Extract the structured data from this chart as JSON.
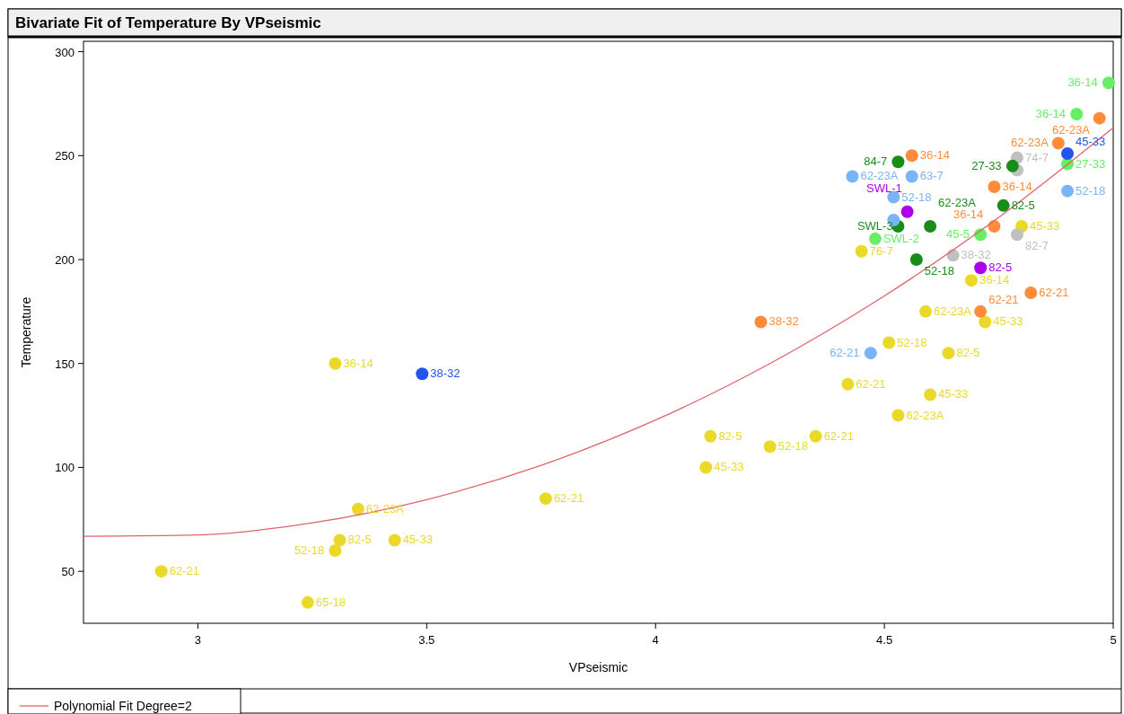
{
  "chart_data": {
    "type": "scatter",
    "title": "Bivariate Fit of Temperature By VPseismic",
    "xlabel": "VPseismic",
    "ylabel": "Temperature",
    "xlim": [
      2.75,
      5
    ],
    "ylim": [
      25,
      305
    ],
    "xticks": [
      3,
      3.5,
      4,
      4.5,
      5
    ],
    "yticks": [
      50,
      100,
      150,
      200,
      250,
      300
    ],
    "grid": false,
    "legend": "bottom left",
    "marker": "circle",
    "series": [
      {
        "color": "#ebd92a",
        "x": [
          2.92,
          3.24,
          3.3,
          3.31,
          3.35,
          3.43,
          3.3,
          3.76,
          4.11,
          4.12,
          4.25,
          4.35,
          4.42,
          4.53,
          4.6,
          4.64,
          4.51,
          4.59,
          4.72,
          4.69,
          4.45,
          4.8
        ],
        "values": [
          50,
          35,
          60,
          65,
          80,
          65,
          150,
          85,
          100,
          115,
          110,
          115,
          140,
          125,
          135,
          155,
          160,
          175,
          170,
          190,
          204,
          216
        ]
      },
      {
        "color": "#ff8c3a",
        "x": [
          4.23,
          4.71,
          4.82,
          4.74,
          4.74,
          4.56,
          4.88,
          4.97
        ],
        "values": [
          170,
          175,
          184,
          216,
          235,
          250,
          256,
          268
        ]
      },
      {
        "color": "#66ee66",
        "x": [
          4.48,
          4.71,
          4.99,
          4.92,
          4.9
        ],
        "values": [
          210,
          212,
          285,
          270,
          246
        ]
      },
      {
        "color": "#c0c0c0",
        "x": [
          4.79,
          4.79,
          4.79,
          4.65
        ],
        "values": [
          249,
          243,
          212,
          202
        ]
      },
      {
        "color": "#1a8c1a",
        "x": [
          4.53,
          4.78,
          4.76,
          4.57,
          4.53,
          4.6
        ],
        "values": [
          247,
          245,
          226,
          200,
          216,
          216
        ]
      },
      {
        "color": "#7ab4f8",
        "x": [
          4.43,
          4.56,
          4.52,
          4.52,
          4.9,
          4.47
        ],
        "values": [
          240,
          240,
          230,
          219,
          233,
          155
        ]
      },
      {
        "color": "#2255ee",
        "x": [
          3.49,
          4.9
        ],
        "values": [
          145,
          251
        ]
      },
      {
        "color": "#aa00ee",
        "x": [
          4.55,
          4.71
        ],
        "values": [
          223,
          196
        ]
      },
      {
        "type": "line",
        "name": "Polynomial Fit Degree=2",
        "color": "#e0636b",
        "marker": "none",
        "x": [
          2.75,
          3,
          3.25,
          3.5,
          3.75,
          4,
          4.25,
          4.5,
          4.75,
          5
        ],
        "values": [
          66.9,
          67.5,
          73.3,
          84.5,
          101,
          122.8,
          150,
          182.5,
          220.3,
          263.4
        ]
      }
    ],
    "annotations": [
      {
        "text": "62-21",
        "x": 2.92,
        "y": 50
      },
      {
        "text": "65-18",
        "x": 3.24,
        "y": 35
      },
      {
        "text": "52-18",
        "x": 3.3,
        "y": 60
      },
      {
        "text": "82-5",
        "x": 3.31,
        "y": 65
      },
      {
        "text": "62-23A",
        "x": 3.35,
        "y": 80
      },
      {
        "text": "45-33",
        "x": 3.43,
        "y": 65
      },
      {
        "text": "36-14",
        "x": 3.3,
        "y": 150
      },
      {
        "text": "62-21",
        "x": 3.76,
        "y": 85
      },
      {
        "text": "45-33",
        "x": 4.11,
        "y": 100
      },
      {
        "text": "82-5",
        "x": 4.12,
        "y": 115
      },
      {
        "text": "52-18",
        "x": 4.25,
        "y": 110
      },
      {
        "text": "62-21",
        "x": 4.35,
        "y": 115
      },
      {
        "text": "62-21",
        "x": 4.42,
        "y": 140
      },
      {
        "text": "62-23A",
        "x": 4.53,
        "y": 125
      },
      {
        "text": "45-33",
        "x": 4.6,
        "y": 135
      },
      {
        "text": "82-5",
        "x": 4.64,
        "y": 155
      },
      {
        "text": "52-18",
        "x": 4.51,
        "y": 160
      },
      {
        "text": "62-23A",
        "x": 4.59,
        "y": 175
      },
      {
        "text": "45-33",
        "x": 4.72,
        "y": 170
      },
      {
        "text": "36-14",
        "x": 4.69,
        "y": 190
      },
      {
        "text": "76-7",
        "x": 4.45,
        "y": 204
      },
      {
        "text": "45-33",
        "x": 4.8,
        "y": 216
      },
      {
        "text": "38-32",
        "x": 4.23,
        "y": 170
      },
      {
        "text": "62-21",
        "x": 4.71,
        "y": 175
      },
      {
        "text": "62-21",
        "x": 4.82,
        "y": 184
      },
      {
        "text": "36-14",
        "x": 4.74,
        "y": 216
      },
      {
        "text": "36-14",
        "x": 4.74,
        "y": 235
      },
      {
        "text": "36-14",
        "x": 4.56,
        "y": 250
      },
      {
        "text": "62-23A",
        "x": 4.88,
        "y": 256
      },
      {
        "text": "62-23A",
        "x": 4.97,
        "y": 268
      },
      {
        "text": "SWL-2",
        "x": 4.48,
        "y": 210
      },
      {
        "text": "45-5",
        "x": 4.71,
        "y": 212
      },
      {
        "text": "36-14",
        "x": 4.99,
        "y": 285
      },
      {
        "text": "36-14",
        "x": 4.92,
        "y": 270
      },
      {
        "text": "27-33",
        "x": 4.9,
        "y": 246
      },
      {
        "text": "84-7",
        "x": 4.53,
        "y": 247
      },
      {
        "text": "27-33",
        "x": 4.78,
        "y": 245
      },
      {
        "text": "82-5",
        "x": 4.76,
        "y": 226
      },
      {
        "text": "52-18",
        "x": 4.57,
        "y": 200
      },
      {
        "text": "SWL-3",
        "x": 4.53,
        "y": 216
      },
      {
        "text": "62-23A",
        "x": 4.6,
        "y": 216
      },
      {
        "text": "62-23A",
        "x": 4.43,
        "y": 240
      },
      {
        "text": "63-7",
        "x": 4.56,
        "y": 240
      },
      {
        "text": "52-18",
        "x": 4.52,
        "y": 230
      },
      {
        "text": "52-18",
        "x": 4.9,
        "y": 233
      },
      {
        "text": "62-21",
        "x": 4.47,
        "y": 155
      },
      {
        "text": "38-32",
        "x": 3.49,
        "y": 145
      },
      {
        "text": "45-33",
        "x": 4.9,
        "y": 251
      },
      {
        "text": "SWL-1",
        "x": 4.55,
        "y": 223
      },
      {
        "text": "82-5",
        "x": 4.71,
        "y": 196
      },
      {
        "text": "74-7",
        "x": 4.79,
        "y": 249
      },
      {
        "text": "82-7",
        "x": 4.79,
        "y": 212
      },
      {
        "text": "38-32",
        "x": 4.65,
        "y": 202
      }
    ]
  }
}
